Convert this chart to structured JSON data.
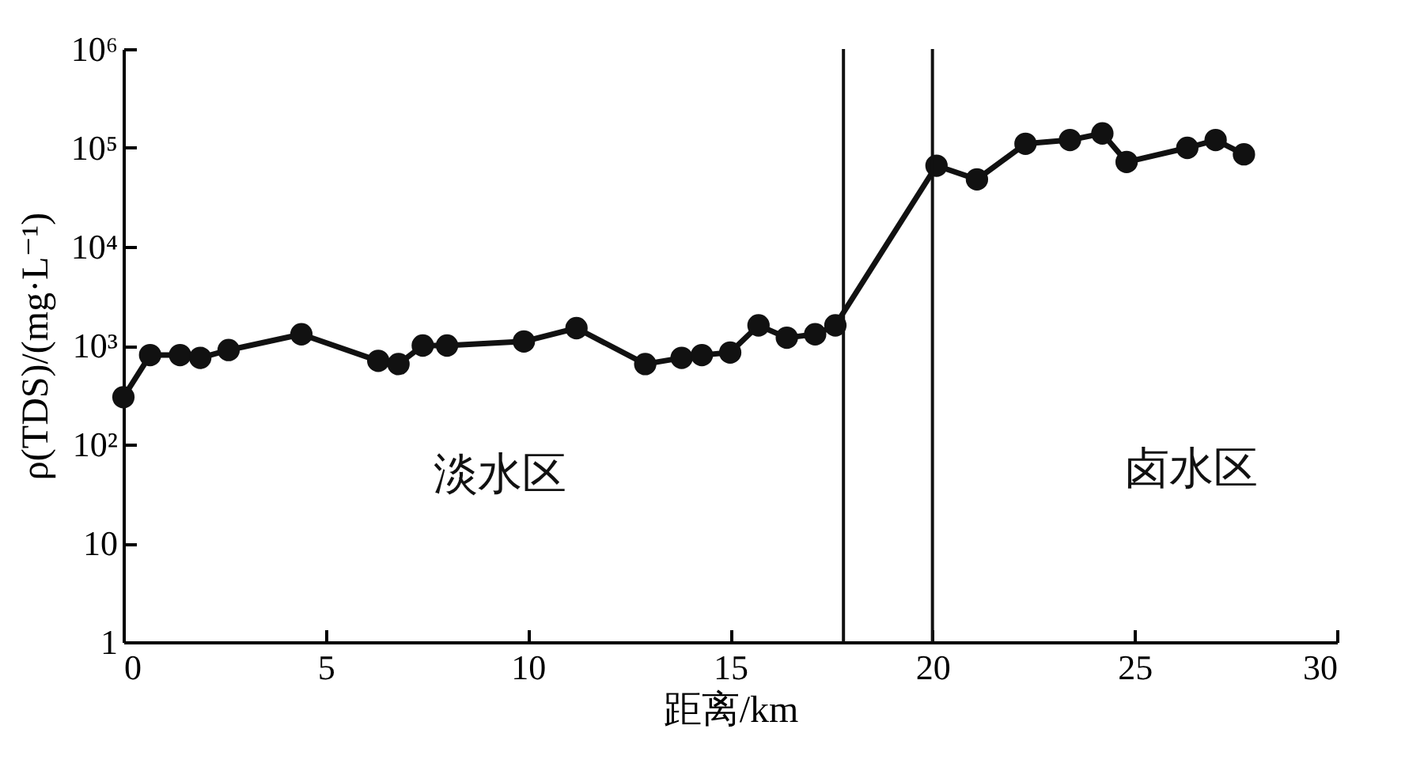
{
  "chart_data": {
    "type": "line",
    "xlabel": "距离/km",
    "ylabel": "ρ(TDS)/(mg·L⁻¹)",
    "x": [
      0,
      0.66,
      1.4,
      1.9,
      2.6,
      4.4,
      6.3,
      6.8,
      7.4,
      8.0,
      9.9,
      11.2,
      12.9,
      13.8,
      14.3,
      15.0,
      15.7,
      16.4,
      17.1,
      17.6,
      20.1,
      21.1,
      22.3,
      23.4,
      24.2,
      24.8,
      26.3,
      27.0,
      27.7
    ],
    "series": [
      {
        "color": "#111111",
        "values": [
          300,
          800,
          800,
          750,
          900,
          1300,
          700,
          650,
          1000,
          1000,
          1100,
          1500,
          650,
          750,
          800,
          850,
          1600,
          1200,
          1300,
          1600,
          66000,
          48000,
          110000,
          120000,
          140000,
          72000,
          100000,
          120000,
          86000
        ]
      }
    ],
    "xlim": [
      0,
      30
    ],
    "xticks": [
      0,
      5,
      10,
      15,
      20,
      25,
      30
    ],
    "ylim": [
      1,
      1000000
    ],
    "yticks": [
      1,
      10,
      {
        "value": 100,
        "label": "10²"
      },
      {
        "value": 1000,
        "label": "10³"
      },
      {
        "value": 10000,
        "label": "10⁴"
      },
      {
        "value": 100000,
        "label": "10⁵"
      },
      {
        "value": 1000000,
        "label": "10⁶"
      }
    ],
    "log": "y",
    "grid": false,
    "marker": "circle",
    "line_style": "solid",
    "ref_lines": [
      {
        "axis": "x",
        "value": 17.8,
        "color": "#111111"
      },
      {
        "axis": "x",
        "value": 20.0,
        "color": "#111111"
      }
    ],
    "annotations": [
      "淡水区",
      "卤水区"
    ]
  }
}
